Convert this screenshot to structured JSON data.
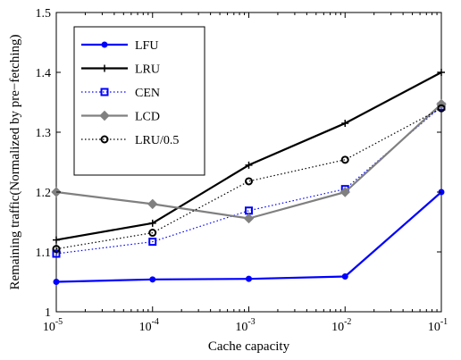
{
  "chart_data": {
    "type": "line",
    "xscale": "log",
    "x": [
      1e-05,
      0.0001,
      0.001,
      0.01,
      0.1
    ],
    "xtick_bases": [
      "10",
      "10",
      "10",
      "10",
      "10"
    ],
    "xtick_exponents": [
      "-5",
      "-4",
      "-3",
      "-2",
      "-1"
    ],
    "xlim": [
      1e-05,
      0.1
    ],
    "ylim": [
      1,
      1.5
    ],
    "yticks": [
      1,
      1.1,
      1.2,
      1.3,
      1.4,
      1.5
    ],
    "ytick_labels": [
      "1",
      "1.1",
      "1.2",
      "1.3",
      "1.4",
      "1.5"
    ],
    "xlabel": "Cache capacity",
    "ylabel": "Remaining traffic(Normalized by pre−fetching)",
    "grid": false,
    "legend_position": "top-left",
    "series": [
      {
        "name": "LFU",
        "values": [
          1.05,
          1.054,
          1.055,
          1.059,
          1.2
        ],
        "color": "#0000ff",
        "line_style": "solid",
        "marker": "dot"
      },
      {
        "name": "LRU",
        "values": [
          1.12,
          1.148,
          1.245,
          1.315,
          1.4
        ],
        "color": "#000000",
        "line_style": "solid",
        "marker": "plus"
      },
      {
        "name": "CEN",
        "values": [
          1.097,
          1.117,
          1.169,
          1.205,
          1.343
        ],
        "color": "#0000ff",
        "line_style": "dotted",
        "marker": "square"
      },
      {
        "name": "LCD",
        "values": [
          1.2,
          1.18,
          1.156,
          1.2,
          1.347
        ],
        "color": "#808080",
        "line_style": "solid",
        "marker": "diamond"
      },
      {
        "name": "LRU/0.5",
        "values": [
          1.105,
          1.132,
          1.218,
          1.254,
          1.34
        ],
        "color": "#000000",
        "line_style": "dotted",
        "marker": "circle"
      }
    ]
  }
}
